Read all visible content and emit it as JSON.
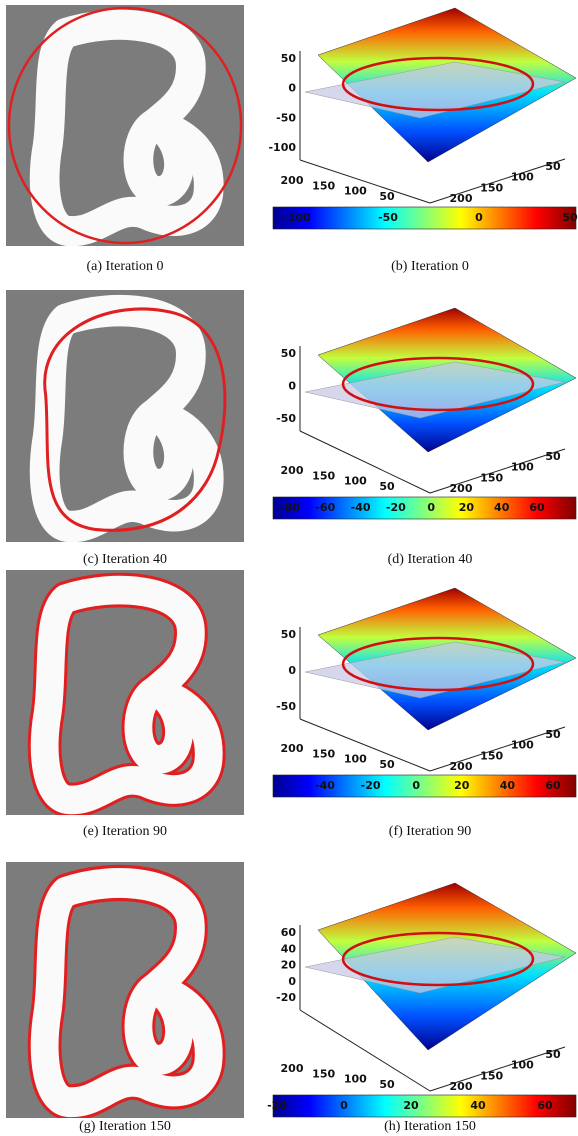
{
  "panels": [
    {
      "image_caption": "(a) Iteration 0",
      "plot_caption": "(b) Iteration 0",
      "z_ticks": [
        50,
        0,
        -50,
        -100
      ],
      "base_left_ticks": [
        200,
        150,
        100,
        50
      ],
      "base_right_ticks": [
        50,
        100,
        150,
        200
      ],
      "colorbar_ticks": [
        -100,
        -50,
        0,
        50
      ]
    },
    {
      "image_caption": "(c) Iteration 40",
      "plot_caption": "(d) Iteration 40",
      "z_ticks": [
        50,
        0,
        -50
      ],
      "base_left_ticks": [
        200,
        150,
        100,
        50
      ],
      "base_right_ticks": [
        50,
        100,
        150,
        200
      ],
      "colorbar_ticks": [
        -80,
        -60,
        -40,
        -20,
        0,
        20,
        40,
        60
      ]
    },
    {
      "image_caption": "(e) Iteration 90",
      "plot_caption": "(f) Iteration 90",
      "z_ticks": [
        50,
        0,
        -50
      ],
      "base_left_ticks": [
        200,
        150,
        100,
        50
      ],
      "base_right_ticks": [
        50,
        100,
        150,
        200
      ],
      "colorbar_ticks": [
        -40,
        -20,
        0,
        20,
        40,
        60
      ]
    },
    {
      "image_caption": "(g) Iteration 150",
      "plot_caption": "(h) Iteration 150",
      "z_ticks": [
        60,
        40,
        20,
        0,
        -20
      ],
      "base_left_ticks": [
        200,
        150,
        100,
        50
      ],
      "base_right_ticks": [
        50,
        100,
        150,
        200
      ],
      "colorbar_ticks": [
        -20,
        0,
        20,
        40,
        60
      ]
    }
  ]
}
